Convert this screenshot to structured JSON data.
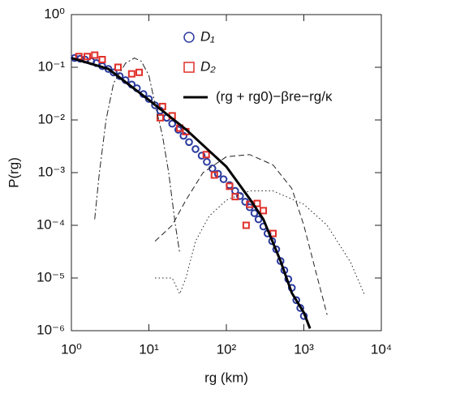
{
  "chart_data": {
    "type": "scatter",
    "xlabel": "rg (km)",
    "ylabel": "P(rg)",
    "log_x": true,
    "log_y": true,
    "xlim": [
      1,
      10000
    ],
    "ylim": [
      1e-06,
      1
    ],
    "xticks": [
      {
        "value": 1,
        "label": "10⁰"
      },
      {
        "value": 10,
        "label": "10¹"
      },
      {
        "value": 100,
        "label": "10²"
      },
      {
        "value": 1000,
        "label": "10³"
      },
      {
        "value": 10000,
        "label": "10⁴"
      }
    ],
    "yticks": [
      {
        "value": 1e-06,
        "label": "10⁻⁶"
      },
      {
        "value": 1e-05,
        "label": "10⁻⁵"
      },
      {
        "value": 0.0001,
        "label": "10⁻⁴"
      },
      {
        "value": 0.001,
        "label": "10⁻³"
      },
      {
        "value": 0.01,
        "label": "10⁻²"
      },
      {
        "value": 0.1,
        "label": "10⁻¹"
      },
      {
        "value": 1,
        "label": "10⁰"
      }
    ],
    "series": [
      {
        "name": "D₁",
        "mark": "circle",
        "color": "#2b3a9e",
        "x": [
          1.1,
          1.3,
          1.5,
          1.8,
          2.1,
          2.5,
          3,
          3.5,
          4.2,
          5,
          6,
          7,
          8.5,
          10,
          12,
          14,
          17,
          20,
          24,
          28,
          33,
          40,
          48,
          56,
          66,
          78,
          92,
          110,
          130,
          150,
          175,
          200,
          230,
          260,
          300,
          340,
          390,
          440,
          500,
          560,
          630,
          700,
          800,
          900,
          1000
        ],
        "values": [
          0.15,
          0.145,
          0.14,
          0.13,
          0.12,
          0.105,
          0.093,
          0.08,
          0.068,
          0.057,
          0.047,
          0.04,
          0.031,
          0.025,
          0.019,
          0.015,
          0.011,
          0.0085,
          0.0065,
          0.005,
          0.0038,
          0.0028,
          0.0021,
          0.0016,
          0.0012,
          0.00095,
          0.00075,
          0.00058,
          0.00045,
          0.00036,
          0.00028,
          0.00022,
          0.00017,
          0.00013,
          9.5e-05,
          7e-05,
          5e-05,
          3.5e-05,
          2.1e-05,
          1.4e-05,
          9.5e-06,
          6.5e-06,
          3.8e-06,
          2.7e-06,
          1.9e-06
        ]
      },
      {
        "name": "D₂",
        "mark": "square",
        "color": "#e0302a",
        "x": [
          1.25,
          1.6,
          2.0,
          2.5,
          4,
          6,
          7.5,
          14,
          15,
          20,
          25,
          30,
          55,
          70,
          110,
          130,
          180,
          200,
          250,
          300,
          400
        ],
        "values": [
          0.16,
          0.16,
          0.17,
          0.14,
          0.1,
          0.075,
          0.08,
          0.011,
          0.018,
          0.012,
          0.007,
          0.006,
          0.0022,
          0.0009,
          0.00055,
          0.00035,
          0.0001,
          0.00025,
          0.00026,
          0.00019,
          7e-05
        ]
      },
      {
        "name": "(rg + rg0)−βre−rg/κ",
        "mark": "line",
        "color": "#000000",
        "width": 3,
        "x": [
          1,
          3,
          10,
          30,
          100,
          200,
          300,
          500,
          700,
          1000,
          1200
        ],
        "values": [
          0.15,
          0.093,
          0.024,
          0.0066,
          0.0013,
          0.00032,
          0.00013,
          2.1e-05,
          5.2e-06,
          2.2e-06,
          1.1e-06
        ]
      },
      {
        "mark": "line",
        "dash": "8 3 2 3",
        "color": "#222222",
        "width": 1,
        "x": [
          2,
          2.3,
          2.8,
          3.5,
          5,
          6.5,
          8,
          10,
          12,
          15,
          18,
          22,
          25
        ],
        "values": [
          0.00013,
          0.001,
          0.01,
          0.05,
          0.12,
          0.15,
          0.13,
          0.07,
          0.02,
          0.005,
          0.001,
          0.0001,
          3e-05
        ]
      },
      {
        "mark": "line",
        "dash": "7 4",
        "color": "#222222",
        "width": 1,
        "x": [
          12,
          20,
          30,
          50,
          100,
          200,
          400,
          700,
          1000,
          1500,
          2000
        ],
        "values": [
          5e-05,
          0.0001,
          0.0003,
          0.001,
          0.002,
          0.0022,
          0.0014,
          0.0005,
          0.0001,
          1e-05,
          2e-06
        ]
      },
      {
        "mark": "line",
        "dash": "1.5 3",
        "color": "#222222",
        "width": 1,
        "x": [
          12,
          20,
          25,
          30,
          40,
          60,
          100,
          200,
          400,
          1000,
          2000,
          4000,
          6000
        ],
        "values": [
          1e-05,
          1e-05,
          5e-06,
          1e-05,
          5e-05,
          0.00015,
          0.0003,
          0.00045,
          0.00045,
          0.00025,
          0.0001,
          2e-05,
          5e-06
        ]
      }
    ]
  }
}
